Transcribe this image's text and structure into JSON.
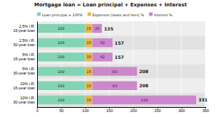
{
  "chart_data": {
    "type": "bar",
    "orientation": "horizontal",
    "stacked": true,
    "title": "Mortgage loan = Loan principal + Expenses + Interest",
    "categories": [
      "2.5% i.R.\n15-year loan",
      "2.5% i.R.\n30-year loan",
      "5% i.R.\n15-year loan",
      "5% i.R.\n30-year loan",
      "10% i.R.\n15-year loan",
      "10% i.R.\n30-year loan"
    ],
    "series": [
      {
        "name": "Loan principal = 100%",
        "color": "#82d4b4",
        "values": [
          100,
          100,
          100,
          100,
          100,
          100
        ]
      },
      {
        "name": "Expenses (taxes and fees) %",
        "color": "#e8b84b",
        "values": [
          15,
          15,
          15,
          15,
          15,
          15
        ]
      },
      {
        "name": "Interest %",
        "color": "#cc88cc",
        "values": [
          20,
          42,
          42,
          93,
          93,
          216
        ]
      }
    ],
    "totals": [
      135,
      157,
      157,
      208,
      208,
      331
    ],
    "xlim": [
      0,
      350
    ],
    "xticks": [
      0,
      50,
      100,
      150,
      200,
      250,
      300,
      350
    ],
    "grid": true,
    "legend": "upper left",
    "data_labels": true
  }
}
